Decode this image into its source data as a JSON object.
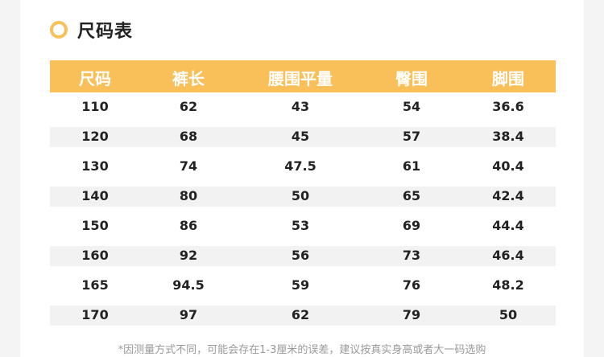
{
  "title": "尺码表",
  "accent": "#f9c05a",
  "table": {
    "headers": [
      "尺码",
      "裤长",
      "腰围平量",
      "臀围",
      "脚围"
    ],
    "rows": [
      [
        "110",
        "62",
        "43",
        "54",
        "36.6"
      ],
      [
        "120",
        "68",
        "45",
        "57",
        "38.4"
      ],
      [
        "130",
        "74",
        "47.5",
        "61",
        "40.4"
      ],
      [
        "140",
        "80",
        "50",
        "65",
        "42.4"
      ],
      [
        "150",
        "86",
        "53",
        "69",
        "44.4"
      ],
      [
        "160",
        "92",
        "56",
        "73",
        "46.4"
      ],
      [
        "165",
        "94.5",
        "59",
        "76",
        "48.2"
      ],
      [
        "170",
        "97",
        "62",
        "79",
        "50"
      ]
    ]
  },
  "note": "*因测量方式不同，可能会存在1-3厘米的误差，建议按真实身高或者大一码选购"
}
